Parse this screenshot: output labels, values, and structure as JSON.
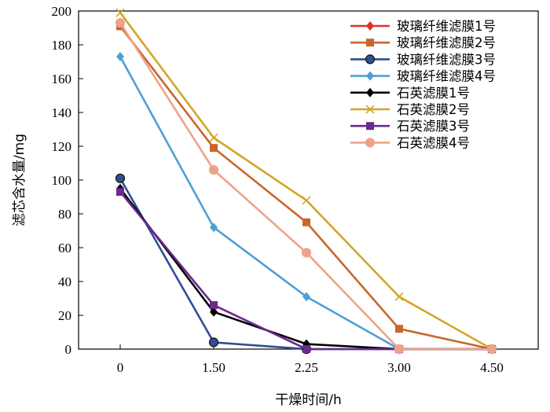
{
  "chart_data": {
    "type": "line",
    "xlabel": "干燥时间/h",
    "ylabel": "滤芯含水量/mg",
    "categories": [
      "0",
      "1.50",
      "2.25",
      "3.00",
      "4.50"
    ],
    "ylim": [
      0,
      200
    ],
    "yticks": [
      0,
      20,
      40,
      60,
      80,
      100,
      120,
      140,
      160,
      180,
      200
    ],
    "grid": false,
    "legend_position": "top-right",
    "series": [
      {
        "name": "玻璃纤维滤膜1号",
        "color": "#e0302a",
        "marker": "diamond",
        "values": [
          null,
          null,
          null,
          null,
          null
        ]
      },
      {
        "name": "玻璃纤维滤膜2号",
        "color": "#c8662c",
        "marker": "square",
        "values": [
          191,
          119,
          75,
          12,
          0
        ]
      },
      {
        "name": "玻璃纤维滤膜3号",
        "color": "#2f4f91",
        "marker": "circle",
        "values": [
          101,
          4,
          0,
          0,
          0
        ]
      },
      {
        "name": "玻璃纤维滤膜4号",
        "color": "#4f9fd6",
        "marker": "diamond",
        "values": [
          173,
          72,
          31,
          0,
          0
        ]
      },
      {
        "name": "石英滤膜1号",
        "color": "#000000",
        "marker": "diamond",
        "values": [
          95,
          22,
          3,
          0,
          0
        ]
      },
      {
        "name": "石英滤膜2号",
        "color": "#d4a528",
        "marker": "x",
        "values": [
          199,
          125,
          88,
          31,
          0
        ]
      },
      {
        "name": "石英滤膜3号",
        "color": "#6a2a8e",
        "marker": "square",
        "values": [
          93,
          26,
          0,
          0,
          0
        ]
      },
      {
        "name": "石英滤膜4号",
        "color": "#eea388",
        "marker": "circle",
        "values": [
          193,
          106,
          57,
          0,
          0
        ]
      }
    ]
  }
}
